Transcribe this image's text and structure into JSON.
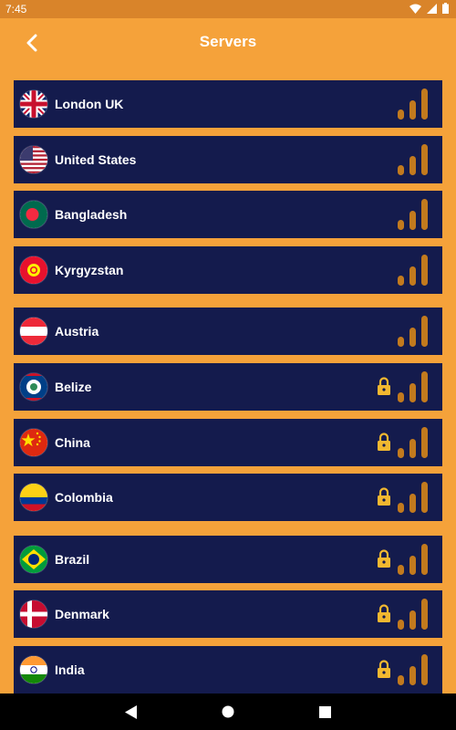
{
  "status_bar": {
    "time": "7:45",
    "icons": [
      "wifi-icon",
      "cell-signal-icon",
      "battery-icon"
    ]
  },
  "app_bar": {
    "title": "Servers",
    "back_icon": "back-chevron-icon"
  },
  "colors": {
    "background": "#F5A23A",
    "row": "#141B4D",
    "signal": "#C27A1E",
    "lock": "#F2B830",
    "status_bar": "#D9842A"
  },
  "servers": [
    {
      "name": "London UK",
      "flag": "uk",
      "locked": false
    },
    {
      "name": "United States",
      "flag": "us",
      "locked": false
    },
    {
      "name": "Bangladesh",
      "flag": "bd",
      "locked": false
    },
    {
      "name": "Kyrgyzstan",
      "flag": "kg",
      "locked": false
    },
    {
      "name": "Austria",
      "flag": "at",
      "locked": false
    },
    {
      "name": "Belize",
      "flag": "bz",
      "locked": true
    },
    {
      "name": "China",
      "flag": "cn",
      "locked": true
    },
    {
      "name": "Colombia",
      "flag": "co",
      "locked": true
    },
    {
      "name": "Brazil",
      "flag": "br",
      "locked": true
    },
    {
      "name": "Denmark",
      "flag": "dk",
      "locked": true
    },
    {
      "name": "India",
      "flag": "in",
      "locked": true
    }
  ],
  "nav_bar": {
    "buttons": [
      "back-triangle-icon",
      "home-circle-icon",
      "recents-square-icon"
    ]
  }
}
